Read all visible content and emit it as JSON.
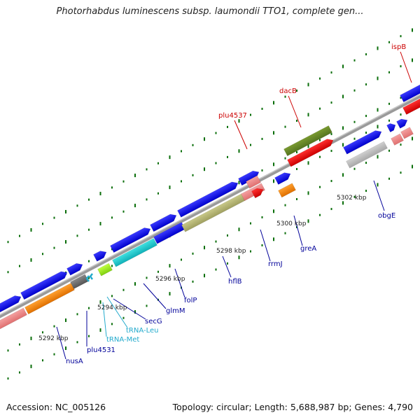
{
  "title": "Photorhabdus luminescens subsp. laumondii TTO1, complete gen...",
  "footer": {
    "accession": "Accession: NC_005126",
    "summary": "Topology: circular; Length: 5,688,987 bp; Genes: 4,790"
  },
  "ruler_labels": [
    "5292 kbp",
    "5294 kbp",
    "5296 kbp",
    "5298 kbp",
    "5300 kbp",
    "5302 kbp"
  ],
  "genes_top": [
    "plu4537",
    "dacB",
    "ispB"
  ],
  "genes_bottom": [
    "nusA",
    "plu4531",
    "tRNA-Met",
    "tRNA-Leu",
    "secG",
    "glmM",
    "folP",
    "hflB",
    "rrmJ",
    "greA",
    "obgE"
  ],
  "colors": {
    "forward_label": "#cc0000",
    "reverse_label": "#000099",
    "trna_label": "#22aacc",
    "tick": "#0a6e0a",
    "backbone": "#808080"
  }
}
